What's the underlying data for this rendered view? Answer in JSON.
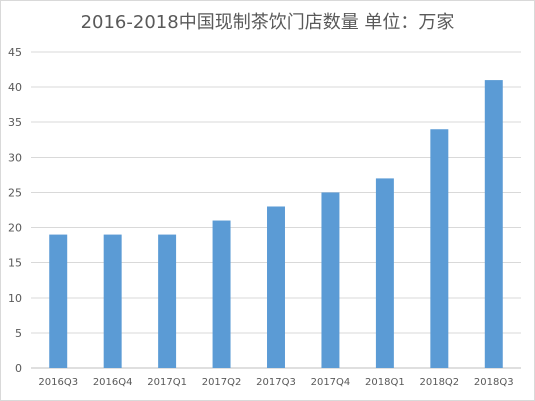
{
  "chart_data": {
    "type": "bar",
    "title": "2016-2018中国现制茶饮门店数量 单位：万家",
    "categories": [
      "2016Q3",
      "2016Q4",
      "2017Q1",
      "2017Q2",
      "2017Q3",
      "2017Q4",
      "2018Q1",
      "2018Q2",
      "2018Q3"
    ],
    "values": [
      19,
      19,
      19,
      21,
      23,
      25,
      27,
      34,
      41
    ],
    "ylim": [
      0,
      45
    ],
    "yticks": [
      0,
      5,
      10,
      15,
      20,
      25,
      30,
      35,
      40,
      45
    ],
    "grid": true,
    "legend": "none",
    "bar_color": "#5b9bd5",
    "grid_color": "#d9d9d9"
  }
}
